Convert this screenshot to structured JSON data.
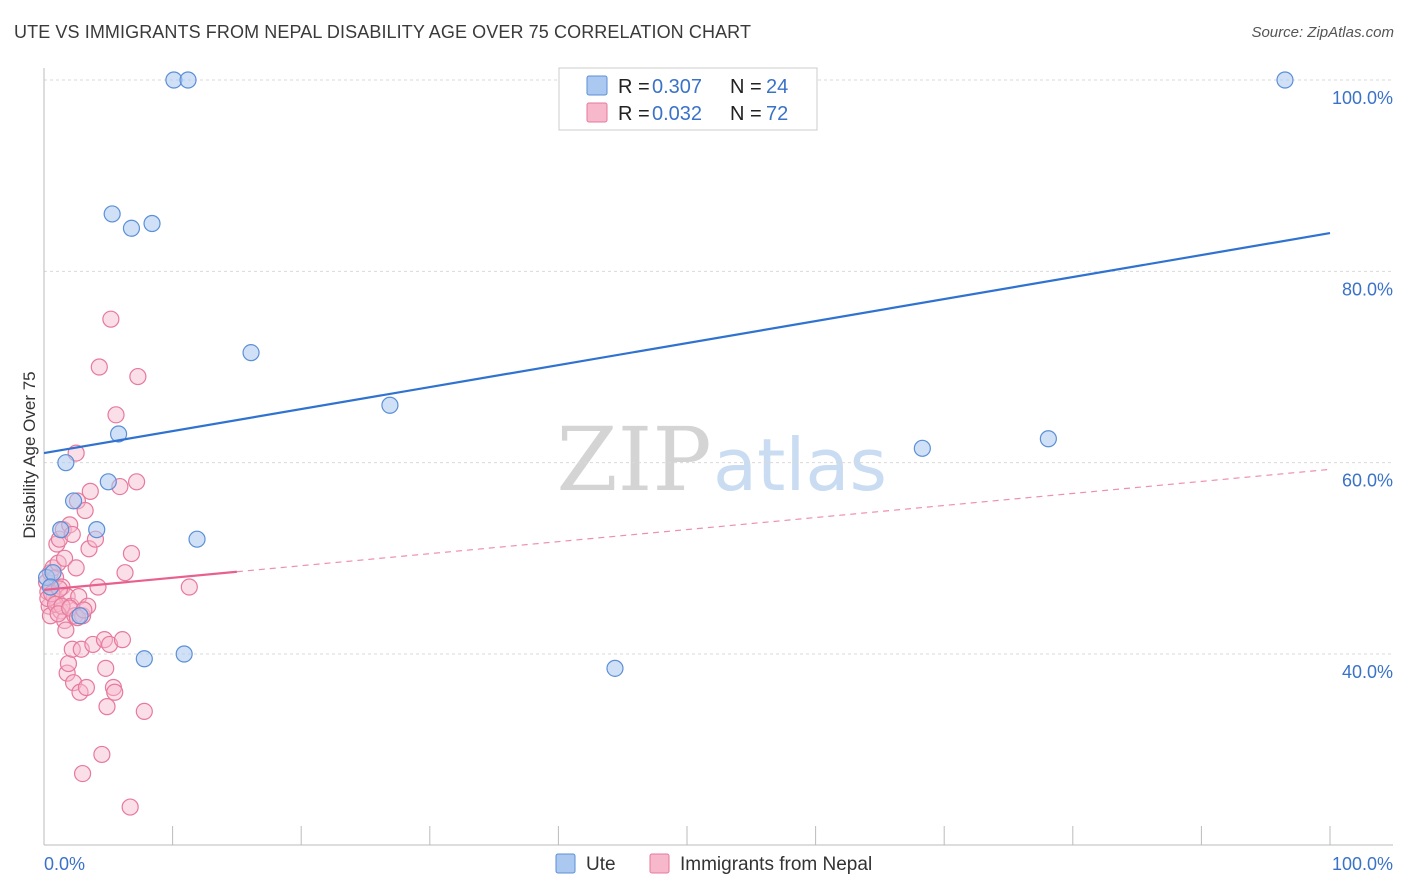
{
  "header": {
    "title": "UTE VS IMMIGRANTS FROM NEPAL DISABILITY AGE OVER 75 CORRELATION CHART",
    "source": "Source: ZipAtlas.com"
  },
  "watermark": {
    "zip": "ZIP",
    "atlas": "atlas"
  },
  "colors": {
    "ute_fill": "#aac8f0",
    "ute_stroke": "#5b8fd6",
    "ute_line": "#2f72d0",
    "nepal_fill": "#f7b8cb",
    "nepal_stroke": "#e7799c",
    "nepal_line": "#e8608e",
    "tick_text": "#3a72c8",
    "grid": "#d9d9d9"
  },
  "legend": {
    "r_label": "R =",
    "n_label": "N =",
    "rows": [
      {
        "r": "0.307",
        "n": "24"
      },
      {
        "r": "0.032",
        "n": "72"
      }
    ]
  },
  "bottom_legend": {
    "ute": "Ute",
    "nepal": "Immigrants from Nepal"
  },
  "chart_data": {
    "type": "scatter",
    "title": "UTE VS IMMIGRANTS FROM NEPAL DISABILITY AGE OVER 75 CORRELATION CHART",
    "xlabel": "",
    "ylabel": "Disability Age Over 75",
    "xlim": [
      0,
      100
    ],
    "ylim": [
      20,
      102
    ],
    "x_tick_labels": [
      "0.0%",
      "100.0%"
    ],
    "y_ticks": [
      40,
      60,
      80,
      100
    ],
    "y_tick_labels": [
      "40.0%",
      "60.0%",
      "80.0%",
      "100.0%"
    ],
    "grid": true,
    "series": [
      {
        "name": "Ute",
        "r": 0.307,
        "n": 24,
        "trend": {
          "x": [
            0,
            100
          ],
          "y": [
            61.0,
            84.0
          ],
          "style": "solid"
        },
        "points": [
          [
            0.2,
            48.0
          ],
          [
            0.7,
            48.5
          ],
          [
            1.3,
            53.0
          ],
          [
            1.7,
            60.0
          ],
          [
            2.3,
            56.0
          ],
          [
            2.8,
            44.0
          ],
          [
            4.1,
            53.0
          ],
          [
            5.0,
            58.0
          ],
          [
            5.3,
            86.0
          ],
          [
            5.8,
            63.0
          ],
          [
            6.8,
            84.5
          ],
          [
            7.8,
            39.5
          ],
          [
            8.4,
            85.0
          ],
          [
            10.1,
            100.0
          ],
          [
            11.2,
            100.0
          ],
          [
            10.9,
            40.0
          ],
          [
            11.9,
            52.0
          ],
          [
            16.1,
            71.5
          ],
          [
            26.9,
            66.0
          ],
          [
            44.4,
            38.5
          ],
          [
            68.3,
            61.5
          ],
          [
            78.1,
            62.5
          ],
          [
            96.5,
            100.0
          ],
          [
            0.5,
            47.0
          ]
        ]
      },
      {
        "name": "Immigrants from Nepal",
        "r": 0.032,
        "n": 72,
        "trend": {
          "x": [
            0,
            15
          ],
          "y": [
            46.7,
            48.6
          ],
          "style": "solid",
          "extended": {
            "x": [
              15,
              100
            ],
            "y": [
              48.6,
              59.3
            ],
            "style": "dashed"
          }
        },
        "points": [
          [
            0.2,
            47.5
          ],
          [
            0.3,
            46.5
          ],
          [
            0.4,
            45.0
          ],
          [
            0.5,
            44.0
          ],
          [
            0.5,
            48.5
          ],
          [
            0.6,
            47.0
          ],
          [
            0.7,
            49.0
          ],
          [
            0.8,
            46.0
          ],
          [
            0.9,
            48.0
          ],
          [
            1.0,
            45.5
          ],
          [
            1.0,
            51.5
          ],
          [
            1.1,
            49.5
          ],
          [
            1.2,
            52.0
          ],
          [
            1.3,
            44.5
          ],
          [
            1.4,
            47.0
          ],
          [
            1.5,
            53.0
          ],
          [
            1.6,
            43.5
          ],
          [
            1.6,
            50.0
          ],
          [
            1.7,
            42.5
          ],
          [
            1.8,
            46.0
          ],
          [
            1.8,
            38.0
          ],
          [
            1.9,
            39.0
          ],
          [
            2.0,
            53.5
          ],
          [
            2.1,
            45.0
          ],
          [
            2.2,
            40.5
          ],
          [
            2.2,
            52.5
          ],
          [
            2.3,
            37.0
          ],
          [
            2.4,
            44.0
          ],
          [
            2.5,
            49.0
          ],
          [
            2.5,
            61.0
          ],
          [
            2.6,
            56.0
          ],
          [
            2.7,
            46.0
          ],
          [
            2.8,
            36.0
          ],
          [
            2.9,
            40.5
          ],
          [
            3.0,
            44.0
          ],
          [
            3.0,
            27.5
          ],
          [
            3.2,
            55.0
          ],
          [
            3.3,
            36.5
          ],
          [
            3.4,
            45.0
          ],
          [
            3.5,
            51.0
          ],
          [
            3.6,
            57.0
          ],
          [
            3.8,
            41.0
          ],
          [
            4.0,
            52.0
          ],
          [
            4.2,
            47.0
          ],
          [
            4.3,
            70.0
          ],
          [
            4.5,
            29.5
          ],
          [
            4.7,
            41.5
          ],
          [
            4.8,
            38.5
          ],
          [
            4.9,
            34.5
          ],
          [
            5.1,
            41.0
          ],
          [
            5.2,
            75.0
          ],
          [
            5.4,
            36.5
          ],
          [
            5.5,
            36.0
          ],
          [
            5.6,
            65.0
          ],
          [
            5.9,
            57.5
          ],
          [
            6.1,
            41.5
          ],
          [
            6.3,
            48.5
          ],
          [
            6.7,
            24.0
          ],
          [
            6.8,
            50.5
          ],
          [
            7.2,
            58.0
          ],
          [
            7.3,
            69.0
          ],
          [
            7.8,
            34.0
          ],
          [
            11.3,
            47.0
          ],
          [
            0.3,
            45.8
          ],
          [
            0.6,
            46.3
          ],
          [
            0.9,
            45.2
          ],
          [
            1.2,
            46.8
          ],
          [
            1.4,
            45.0
          ],
          [
            1.1,
            44.2
          ],
          [
            2.0,
            44.8
          ],
          [
            2.6,
            43.8
          ],
          [
            3.1,
            44.6
          ]
        ]
      }
    ]
  }
}
